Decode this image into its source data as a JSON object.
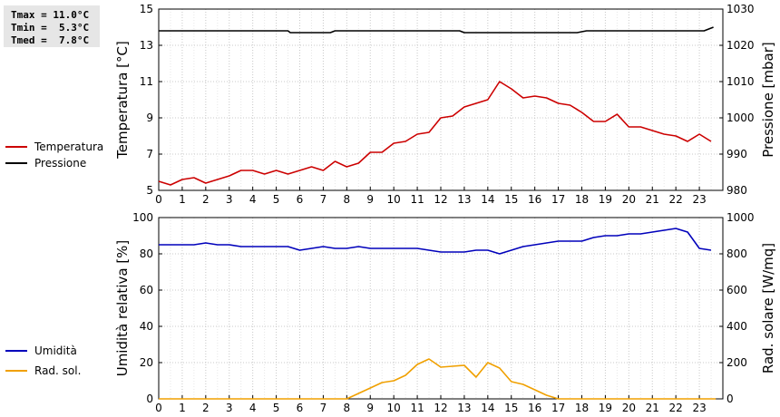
{
  "stats": {
    "tmax": "Tmax = 11.0°C",
    "tmin": "Tmin =  5.3°C",
    "tmed": "Tmed =  7.8°C"
  },
  "chart_data": [
    {
      "type": "line",
      "x_ticks": [
        "0",
        "1",
        "2",
        "3",
        "4",
        "5",
        "6",
        "7",
        "8",
        "9",
        "10",
        "11",
        "12",
        "13",
        "14",
        "15",
        "16",
        "17",
        "18",
        "19",
        "20",
        "21",
        "22",
        "23"
      ],
      "xlim": [
        0,
        24
      ],
      "ylabel": "Temperatura [°C]",
      "ylabel_right": "Pressione [mbar]",
      "ylim": [
        5,
        15
      ],
      "ylim_right": [
        980,
        1030
      ],
      "yticks": [
        "5",
        "7",
        "9",
        "11",
        "13",
        "15"
      ],
      "yticks_right": [
        "980",
        "990",
        "1000",
        "1010",
        "1020",
        "1030"
      ],
      "grid": true,
      "legend_position": "left",
      "series": [
        {
          "name": "Temperatura",
          "axis": "left",
          "color": "#cc0000",
          "x": [
            0,
            0.5,
            1,
            1.5,
            2,
            2.5,
            3,
            3.5,
            4,
            4.5,
            5,
            5.5,
            6,
            6.5,
            7,
            7.5,
            8,
            8.5,
            9,
            9.5,
            10,
            10.5,
            11,
            11.5,
            12,
            12.5,
            13,
            13.5,
            14,
            14.5,
            15,
            15.5,
            16,
            16.5,
            17,
            17.5,
            18,
            18.5,
            19,
            19.5,
            20,
            20.5,
            21,
            21.5,
            22,
            22.5,
            23,
            23.5
          ],
          "values": [
            5.5,
            5.3,
            5.6,
            5.7,
            5.4,
            5.6,
            5.8,
            6.1,
            6.1,
            5.9,
            6.1,
            5.9,
            6.1,
            6.3,
            6.1,
            6.6,
            6.3,
            6.5,
            7.1,
            7.1,
            7.6,
            7.7,
            8.1,
            8.2,
            9.0,
            9.1,
            9.6,
            9.8,
            10.0,
            11.0,
            10.6,
            10.1,
            10.2,
            10.1,
            9.8,
            9.7,
            9.3,
            8.8,
            8.8,
            9.2,
            8.5,
            8.5,
            8.3,
            8.1,
            8.0,
            7.7,
            8.1,
            7.7
          ]
        },
        {
          "name": "Pressione",
          "axis": "right",
          "color": "#000000",
          "x": [
            0,
            5.5,
            5.6,
            7.3,
            7.5,
            12.8,
            13,
            17.8,
            18.2,
            23.2,
            23.6
          ],
          "values": [
            1024,
            1024,
            1023.5,
            1023.5,
            1024,
            1024,
            1023.5,
            1023.5,
            1024,
            1024,
            1025
          ]
        }
      ]
    },
    {
      "type": "line",
      "x_ticks": [
        "0",
        "1",
        "2",
        "3",
        "4",
        "5",
        "6",
        "7",
        "8",
        "9",
        "10",
        "11",
        "12",
        "13",
        "14",
        "15",
        "16",
        "17",
        "18",
        "19",
        "20",
        "21",
        "22",
        "23"
      ],
      "xlim": [
        0,
        24
      ],
      "ylabel": "Umidità relativa [%]",
      "ylabel_right": "Rad. solare [W/mq]",
      "ylim": [
        0,
        100
      ],
      "ylim_right": [
        0,
        1000
      ],
      "yticks": [
        "0",
        "20",
        "40",
        "60",
        "80",
        "100"
      ],
      "yticks_right": [
        "0",
        "200",
        "400",
        "600",
        "800",
        "1000"
      ],
      "grid": true,
      "legend_position": "left",
      "series": [
        {
          "name": "Umidità",
          "axis": "left",
          "color": "#0000bb",
          "x": [
            0,
            0.5,
            1,
            1.5,
            2,
            2.5,
            3,
            3.5,
            4,
            4.5,
            5,
            5.5,
            6,
            6.5,
            7,
            7.5,
            8,
            8.5,
            9,
            9.5,
            10,
            10.5,
            11,
            11.5,
            12,
            12.5,
            13,
            13.5,
            14,
            14.5,
            15,
            15.5,
            16,
            16.5,
            17,
            17.5,
            18,
            18.5,
            19,
            19.5,
            20,
            20.5,
            21,
            21.5,
            22,
            22.5,
            23,
            23.5
          ],
          "values": [
            85,
            85,
            85,
            85,
            86,
            85,
            85,
            84,
            84,
            84,
            84,
            84,
            82,
            83,
            84,
            83,
            83,
            84,
            83,
            83,
            83,
            83,
            83,
            82,
            81,
            81,
            81,
            82,
            82,
            80,
            82,
            84,
            85,
            86,
            87,
            87,
            87,
            89,
            90,
            90,
            91,
            91,
            92,
            93,
            94,
            92,
            83,
            82
          ]
        },
        {
          "name": "Rad. sol.",
          "axis": "right",
          "color": "#f0a000",
          "x": [
            0,
            8,
            8.5,
            9,
            9.5,
            10,
            10.5,
            11,
            11.5,
            12,
            12.5,
            13,
            13.5,
            14,
            14.5,
            15,
            15.5,
            16,
            16.5,
            17,
            17.5,
            23.7
          ],
          "values": [
            0,
            0,
            30,
            60,
            90,
            100,
            130,
            190,
            220,
            175,
            180,
            185,
            120,
            200,
            170,
            95,
            80,
            50,
            20,
            0,
            0,
            0
          ]
        }
      ]
    }
  ]
}
